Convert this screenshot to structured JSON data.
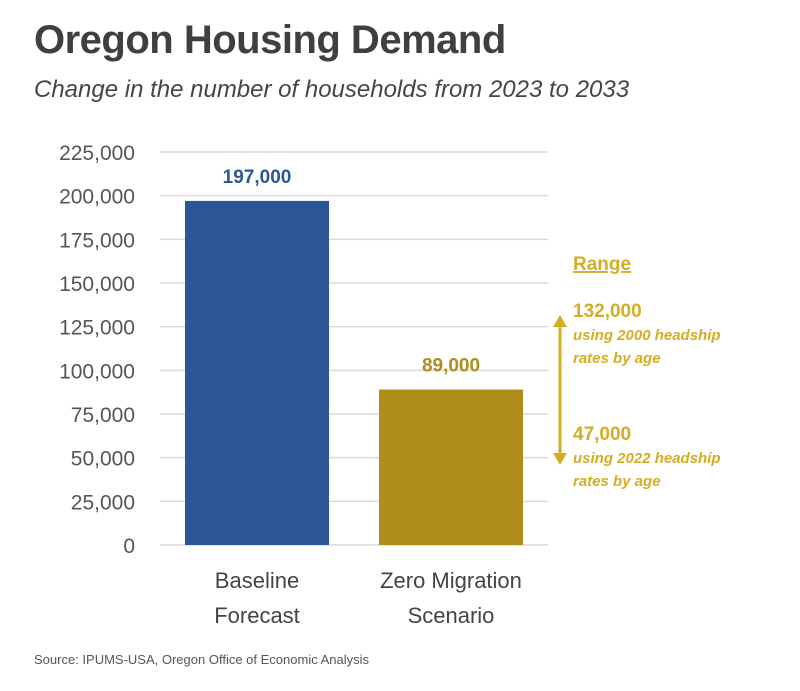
{
  "title": "Oregon Housing Demand",
  "subtitle": "Change in the number of households from 2023 to 2033",
  "source": "Source: IPUMS-USA, Oregon Office of Economic Analysis",
  "colors": {
    "baseline": "#2b5797",
    "zero_migration": "#b08d1a",
    "range": "#d4ad22",
    "grid": "#d9d9d9"
  },
  "chart_data": {
    "type": "bar",
    "categories": [
      [
        "Baseline",
        "Forecast"
      ],
      [
        "Zero Migration",
        "Scenario"
      ]
    ],
    "values": [
      197000,
      89000
    ],
    "data_labels": [
      "197,000",
      "89,000"
    ],
    "ylim": [
      0,
      225000
    ],
    "yticks": [
      0,
      25000,
      50000,
      75000,
      100000,
      125000,
      150000,
      175000,
      200000,
      225000
    ],
    "ytick_labels": [
      "0",
      "25,000",
      "50,000",
      "75,000",
      "100,000",
      "125,000",
      "150,000",
      "175,000",
      "200,000",
      "225,000"
    ],
    "grid": true,
    "range": {
      "title": "Range",
      "high": {
        "value": 132000,
        "label": "132,000",
        "note": [
          "using 2000 headship",
          "rates by age"
        ]
      },
      "low": {
        "value": 47000,
        "label": "47,000",
        "note": [
          "using 2022 headship",
          "rates by age"
        ]
      }
    }
  }
}
